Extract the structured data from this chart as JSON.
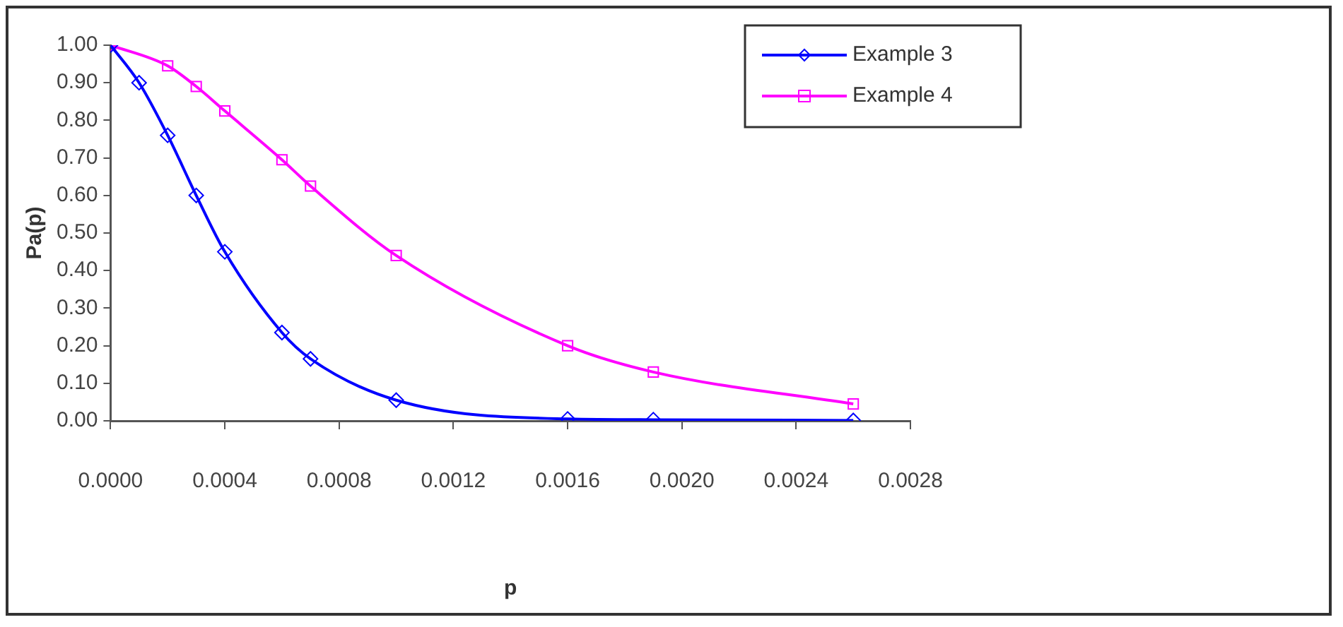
{
  "chart_data": {
    "type": "line",
    "xlabel": "p",
    "ylabel": "Pa(p)",
    "xlim": [
      0,
      0.0028
    ],
    "xticks": [
      {
        "value": 0,
        "label": "0.0000"
      },
      {
        "value": 0.0004,
        "label": "0.0004"
      },
      {
        "value": 0.0008,
        "label": "0.0008"
      },
      {
        "value": 0.0012,
        "label": "0.0012"
      },
      {
        "value": 0.0016,
        "label": "0.0016"
      },
      {
        "value": 0.002,
        "label": "0.0020"
      },
      {
        "value": 0.0024,
        "label": "0.0024"
      },
      {
        "value": 0.0028,
        "label": "0.0028"
      }
    ],
    "ylim": [
      0,
      1
    ],
    "yticks": [
      {
        "value": 0,
        "label": "0.00"
      },
      {
        "value": 0.1,
        "label": "0.10"
      },
      {
        "value": 0.2,
        "label": "0.20"
      },
      {
        "value": 0.3,
        "label": "0.30"
      },
      {
        "value": 0.4,
        "label": "0.40"
      },
      {
        "value": 0.5,
        "label": "0.50"
      },
      {
        "value": 0.6,
        "label": "0.60"
      },
      {
        "value": 0.7,
        "label": "0.70"
      },
      {
        "value": 0.8,
        "label": "0.80"
      },
      {
        "value": 0.9,
        "label": "0.90"
      },
      {
        "value": 1,
        "label": "1.00"
      }
    ],
    "grid": false,
    "legend": "top right",
    "series": [
      {
        "name": "Example 3",
        "color": "#0000ff",
        "marker": "diamond",
        "x": [
          0,
          0.0001,
          0.0002,
          0.0003,
          0.0004,
          0.0006,
          0.0007,
          0.001,
          0.0016,
          0.0019,
          0.0026
        ],
        "values": [
          1.0,
          0.9,
          0.76,
          0.6,
          0.45,
          0.235,
          0.165,
          0.055,
          0.005,
          0.003,
          0.001
        ]
      },
      {
        "name": "Example 4",
        "color": "#ff00ff",
        "marker": "square",
        "x": [
          0,
          0.0002,
          0.0003,
          0.0004,
          0.0006,
          0.0007,
          0.001,
          0.0016,
          0.0019,
          0.0026
        ],
        "values": [
          1.0,
          0.945,
          0.89,
          0.825,
          0.695,
          0.625,
          0.44,
          0.2,
          0.13,
          0.045
        ]
      }
    ]
  }
}
